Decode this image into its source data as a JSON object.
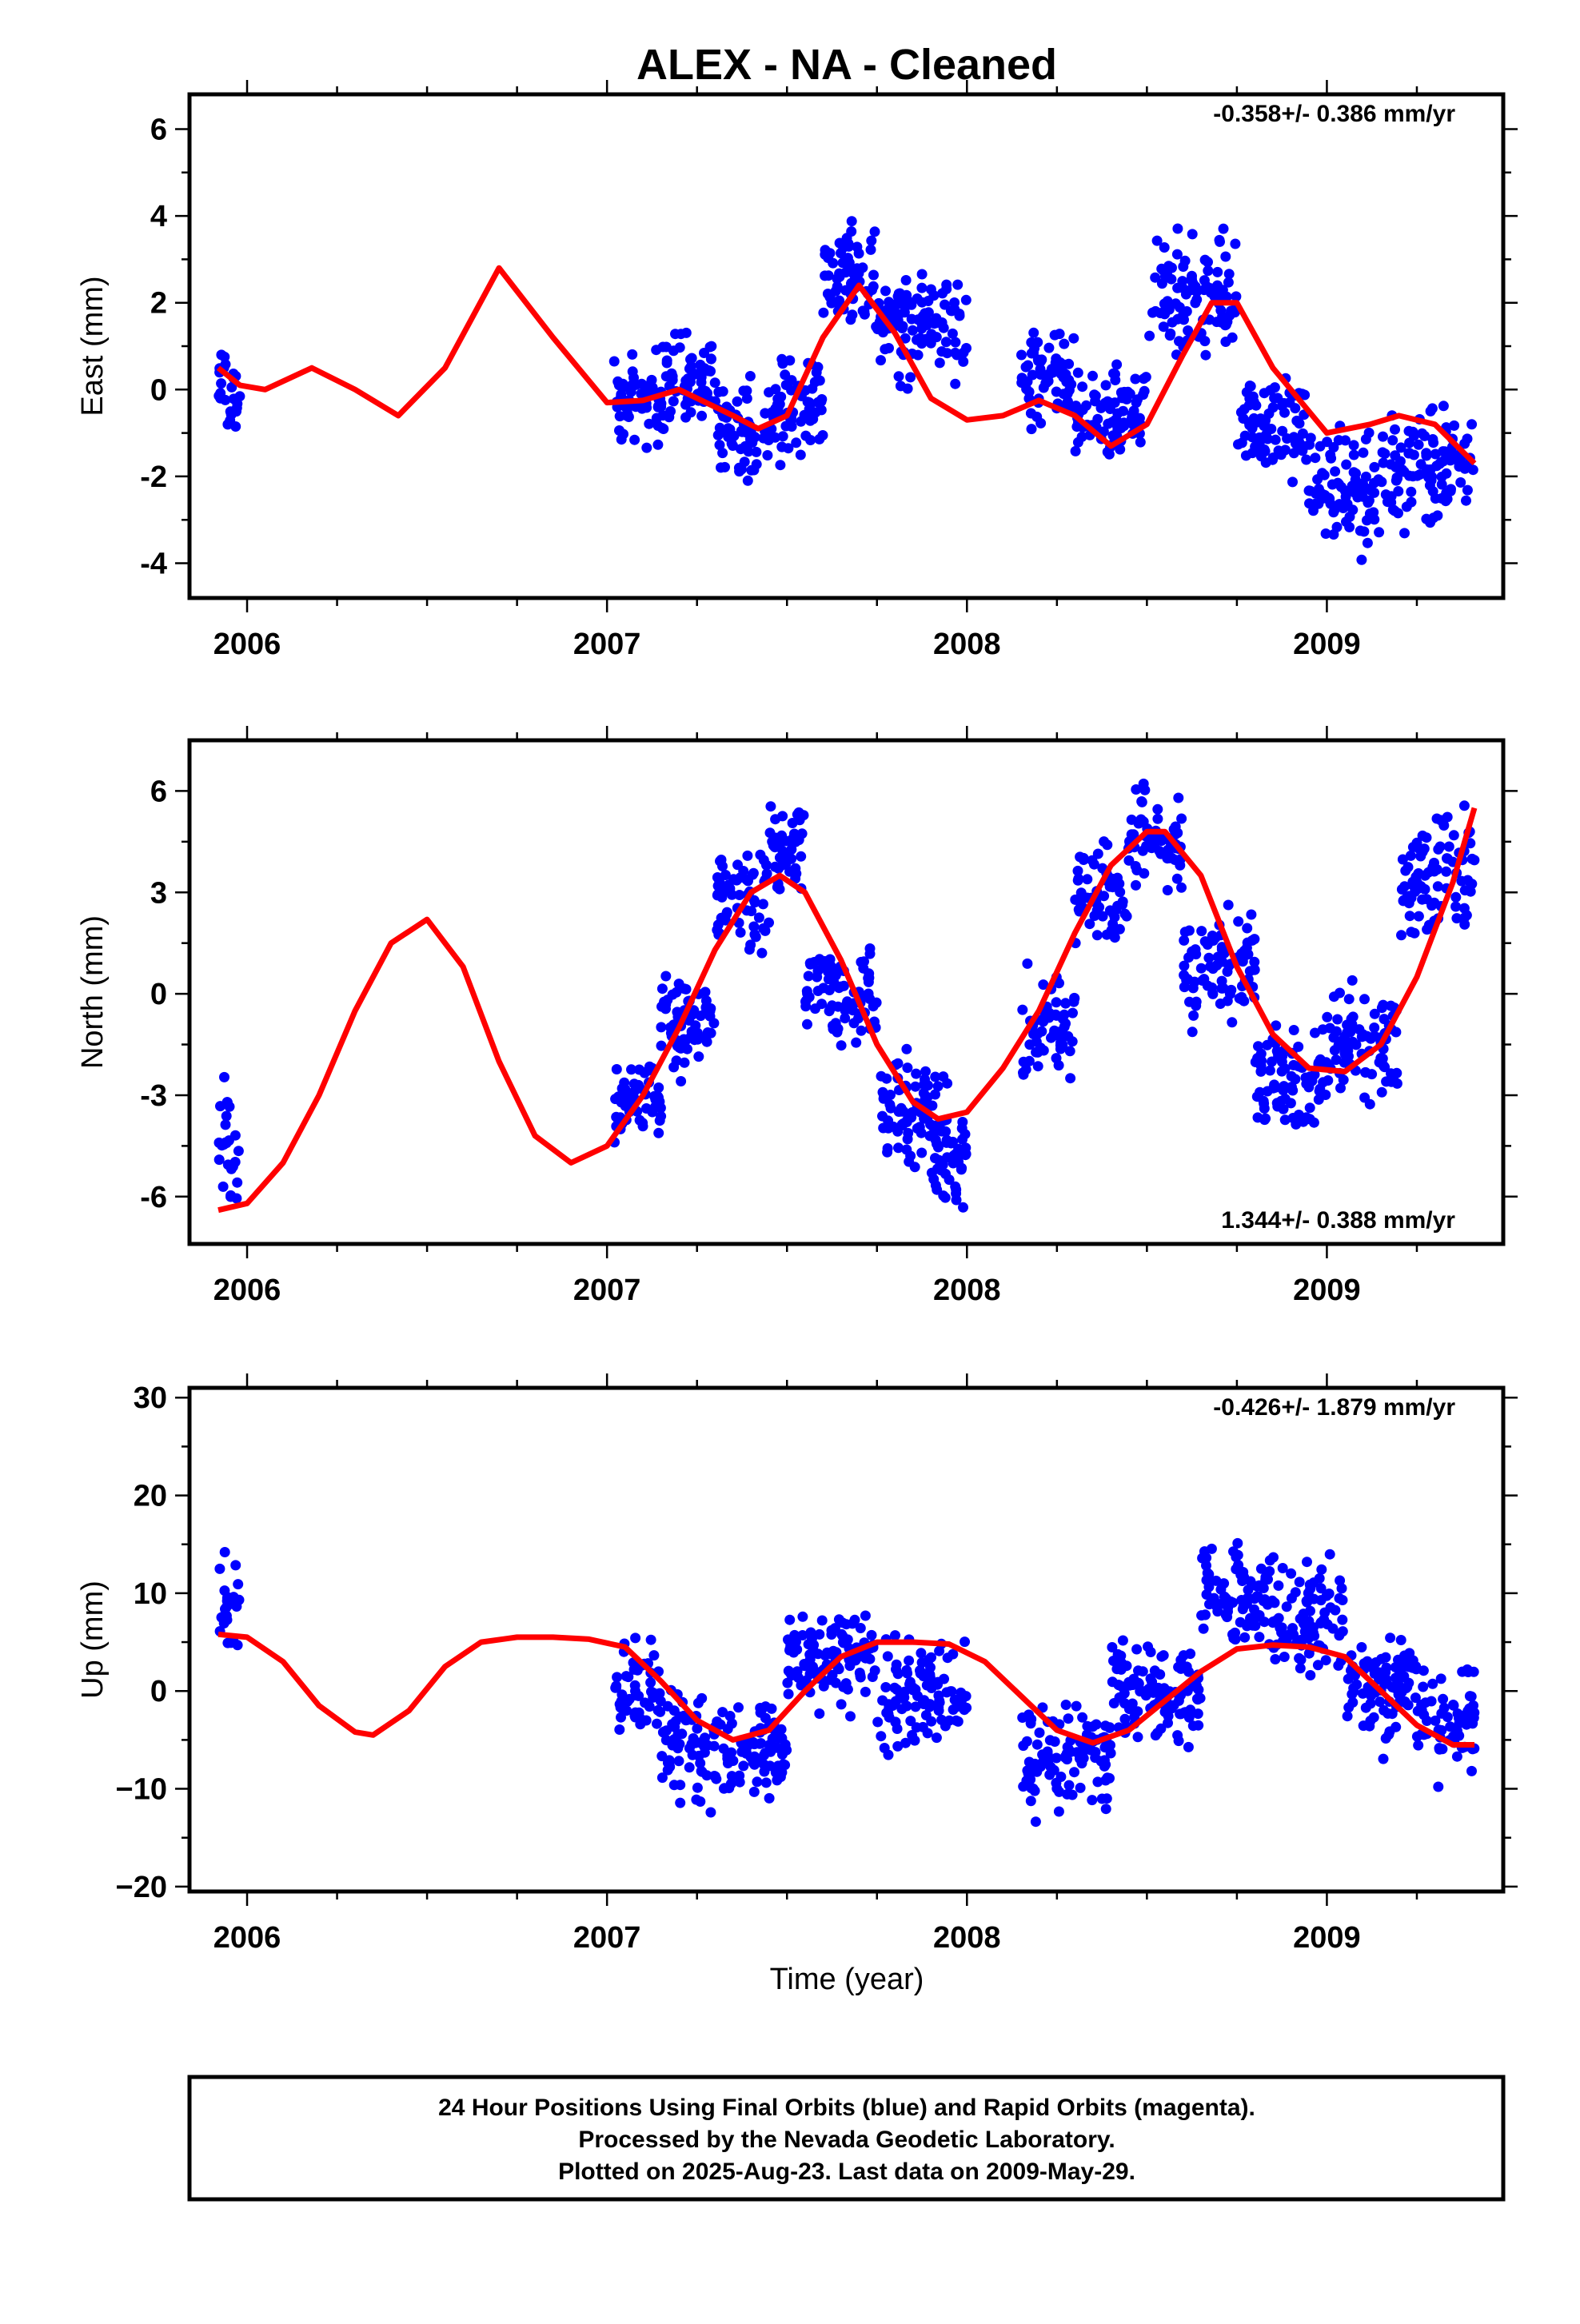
{
  "title": "ALEX  - NA - Cleaned",
  "colors": {
    "points": "#0000ff",
    "fit": "#ff0000",
    "frame": "#000000"
  },
  "x_axis": {
    "label": "Time (year)",
    "ticks": [
      "2006",
      "2007",
      "2008",
      "2009"
    ],
    "xlim": [
      2005.84,
      2009.49
    ]
  },
  "caption": {
    "line1": "24 Hour Positions Using Final Orbits (blue) and Rapid Orbits (magenta).",
    "line2": "Processed by the Nevada Geodetic Laboratory.",
    "line3": "Plotted on 2025-Aug-23. Last data on 2009-May-29."
  },
  "chart_data": [
    {
      "type": "scatter",
      "component": "east",
      "ylabel": "East (mm)",
      "rate": "-0.358+/- 0.386 mm/yr",
      "rate_position": "top-right",
      "ylim": [
        -4.8,
        6.8
      ],
      "yticks": [
        "6",
        "4",
        "2",
        "0",
        "-2",
        "-4"
      ],
      "ytick_values": [
        6,
        4,
        2,
        0,
        -2,
        -4
      ],
      "grid": false,
      "series": [
        {
          "name": "24 hour positions (final orbits)",
          "clusters": [
            {
              "x": [
                2005.92,
                2005.98
              ],
              "y_center": 0.0,
              "spread": 0.9
            },
            {
              "x": [
                2007.02,
                2007.15
              ],
              "y_center": -0.3,
              "spread": 0.9
            },
            {
              "x": [
                2007.15,
                2007.3
              ],
              "y_center": 0.2,
              "spread": 0.9
            },
            {
              "x": [
                2007.3,
                2007.45
              ],
              "y_center": -1.0,
              "spread": 0.9
            },
            {
              "x": [
                2007.45,
                2007.6
              ],
              "y_center": -0.3,
              "spread": 0.9
            },
            {
              "x": [
                2007.6,
                2007.75
              ],
              "y_center": 2.8,
              "spread": 1.1
            },
            {
              "x": [
                2007.75,
                2008.0
              ],
              "y_center": 1.5,
              "spread": 1.0
            },
            {
              "x": [
                2008.15,
                2008.3
              ],
              "y_center": 0.3,
              "spread": 0.9
            },
            {
              "x": [
                2008.3,
                2008.5
              ],
              "y_center": -0.5,
              "spread": 0.9
            },
            {
              "x": [
                2008.5,
                2008.75
              ],
              "y_center": 2.2,
              "spread": 1.0
            },
            {
              "x": [
                2008.75,
                2008.95
              ],
              "y_center": -0.8,
              "spread": 0.9
            },
            {
              "x": [
                2008.95,
                2009.15
              ],
              "y_center": -2.4,
              "spread": 1.0
            },
            {
              "x": [
                2009.15,
                2009.41
              ],
              "y_center": -1.8,
              "spread": 1.0
            }
          ]
        },
        {
          "name": "seasonal fit",
          "x": [
            2005.92,
            2005.98,
            2006.05,
            2006.18,
            2006.3,
            2006.42,
            2006.55,
            2006.7,
            2006.85,
            2007.0,
            2007.1,
            2007.2,
            2007.35,
            2007.42,
            2007.5,
            2007.6,
            2007.7,
            2007.8,
            2007.9,
            2008.0,
            2008.1,
            2008.2,
            2008.3,
            2008.4,
            2008.5,
            2008.6,
            2008.68,
            2008.75,
            2008.85,
            2009.0,
            2009.12,
            2009.2,
            2009.3,
            2009.41
          ],
          "y": [
            0.5,
            0.1,
            0.0,
            0.5,
            0.0,
            -0.6,
            0.5,
            2.8,
            1.2,
            -0.3,
            -0.25,
            0.0,
            -0.6,
            -0.9,
            -0.6,
            1.2,
            2.4,
            1.3,
            -0.2,
            -0.7,
            -0.6,
            -0.25,
            -0.6,
            -1.3,
            -0.8,
            0.8,
            2.0,
            2.0,
            0.5,
            -1.0,
            -0.8,
            -0.6,
            -0.8,
            -1.7
          ]
        }
      ]
    },
    {
      "type": "scatter",
      "component": "north",
      "ylabel": "North (mm)",
      "rate": "1.344+/- 0.388 mm/yr",
      "rate_position": "bottom-right",
      "ylim": [
        -7.4,
        7.5
      ],
      "yticks": [
        "6",
        "3",
        "0",
        "-3",
        "-6"
      ],
      "ytick_values": [
        6,
        3,
        0,
        -3,
        -6
      ],
      "grid": false,
      "series": [
        {
          "name": "24 hour positions (final orbits)",
          "clusters": [
            {
              "x": [
                2005.92,
                2005.98
              ],
              "y_center": -4.5,
              "spread": 1.8
            },
            {
              "x": [
                2007.02,
                2007.15
              ],
              "y_center": -3.3,
              "spread": 1.0
            },
            {
              "x": [
                2007.15,
                2007.3
              ],
              "y_center": -1.0,
              "spread": 1.2
            },
            {
              "x": [
                2007.3,
                2007.45
              ],
              "y_center": 2.8,
              "spread": 1.2
            },
            {
              "x": [
                2007.45,
                2007.55
              ],
              "y_center": 4.3,
              "spread": 1.2
            },
            {
              "x": [
                2007.55,
                2007.75
              ],
              "y_center": 0.0,
              "spread": 1.2
            },
            {
              "x": [
                2007.75,
                2007.95
              ],
              "y_center": -3.5,
              "spread": 1.2
            },
            {
              "x": [
                2007.9,
                2008.0
              ],
              "y_center": -5.0,
              "spread": 1.0
            },
            {
              "x": [
                2008.15,
                2008.3
              ],
              "y_center": -1.0,
              "spread": 1.2
            },
            {
              "x": [
                2008.3,
                2008.45
              ],
              "y_center": 3.0,
              "spread": 1.2
            },
            {
              "x": [
                2008.45,
                2008.6
              ],
              "y_center": 4.5,
              "spread": 1.2
            },
            {
              "x": [
                2008.6,
                2008.8
              ],
              "y_center": 0.8,
              "spread": 1.2
            },
            {
              "x": [
                2008.8,
                2009.0
              ],
              "y_center": -2.5,
              "spread": 1.2
            },
            {
              "x": [
                2009.0,
                2009.2
              ],
              "y_center": -1.5,
              "spread": 1.2
            },
            {
              "x": [
                2009.2,
                2009.41
              ],
              "y_center": 3.5,
              "spread": 1.5
            }
          ]
        },
        {
          "name": "seasonal fit",
          "x": [
            2005.92,
            2006.0,
            2006.1,
            2006.2,
            2006.3,
            2006.4,
            2006.5,
            2006.6,
            2006.7,
            2006.8,
            2006.9,
            2007.0,
            2007.1,
            2007.2,
            2007.3,
            2007.4,
            2007.48,
            2007.55,
            2007.65,
            2007.75,
            2007.85,
            2007.92,
            2008.0,
            2008.1,
            2008.2,
            2008.3,
            2008.4,
            2008.5,
            2008.55,
            2008.65,
            2008.75,
            2008.85,
            2008.95,
            2009.05,
            2009.15,
            2009.25,
            2009.35,
            2009.41
          ],
          "y": [
            -6.4,
            -6.2,
            -5.0,
            -3.0,
            -0.5,
            1.5,
            2.2,
            0.8,
            -2.0,
            -4.2,
            -5.0,
            -4.5,
            -3.0,
            -1.0,
            1.3,
            3.0,
            3.5,
            3.0,
            1.0,
            -1.5,
            -3.2,
            -3.7,
            -3.5,
            -2.2,
            -0.5,
            1.8,
            3.8,
            4.8,
            4.8,
            3.5,
            0.8,
            -1.2,
            -2.2,
            -2.3,
            -1.5,
            0.5,
            3.3,
            5.5
          ]
        }
      ]
    },
    {
      "type": "scatter",
      "component": "up",
      "ylabel": "Up (mm)",
      "rate": "-0.426+/- 1.879 mm/yr",
      "rate_position": "top-right",
      "ylim": [
        -20.5,
        31.0
      ],
      "yticks": [
        "30",
        "20",
        "10",
        "0",
        "−10",
        "−20"
      ],
      "ytick_values": [
        30,
        20,
        10,
        0,
        -10,
        -20
      ],
      "grid": false,
      "series": [
        {
          "name": "24 hour positions (final orbits)",
          "clusters": [
            {
              "x": [
                2005.92,
                2005.98
              ],
              "y_center": 8.0,
              "spread": 4.5
            },
            {
              "x": [
                2007.02,
                2007.15
              ],
              "y_center": 0.0,
              "spread": 4.5
            },
            {
              "x": [
                2007.15,
                2007.3
              ],
              "y_center": -6.0,
              "spread": 4.5
            },
            {
              "x": [
                2007.3,
                2007.5
              ],
              "y_center": -6.0,
              "spread": 3.5
            },
            {
              "x": [
                2007.5,
                2007.75
              ],
              "y_center": 3.5,
              "spread": 4.0
            },
            {
              "x": [
                2007.75,
                2008.0
              ],
              "y_center": 0.0,
              "spread": 4.5
            },
            {
              "x": [
                2008.15,
                2008.4
              ],
              "y_center": -7.0,
              "spread": 4.0
            },
            {
              "x": [
                2008.4,
                2008.65
              ],
              "y_center": 0.0,
              "spread": 4.0
            },
            {
              "x": [
                2008.65,
                2008.85
              ],
              "y_center": 10.0,
              "spread": 4.0
            },
            {
              "x": [
                2008.85,
                2009.05
              ],
              "y_center": 7.0,
              "spread": 5.0
            },
            {
              "x": [
                2009.05,
                2009.25
              ],
              "y_center": 0.0,
              "spread": 4.5
            },
            {
              "x": [
                2009.25,
                2009.41
              ],
              "y_center": -3.0,
              "spread": 4.0
            }
          ]
        },
        {
          "name": "seasonal fit",
          "x": [
            2005.92,
            2006.0,
            2006.1,
            2006.2,
            2006.3,
            2006.35,
            2006.45,
            2006.55,
            2006.65,
            2006.75,
            2006.85,
            2006.95,
            2007.05,
            2007.15,
            2007.25,
            2007.35,
            2007.45,
            2007.55,
            2007.65,
            2007.75,
            2007.85,
            2007.95,
            2008.05,
            2008.15,
            2008.25,
            2008.35,
            2008.45,
            2008.55,
            2008.65,
            2008.75,
            2008.85,
            2008.95,
            2009.05,
            2009.15,
            2009.25,
            2009.35,
            2009.41
          ],
          "y": [
            5.8,
            5.5,
            3.0,
            -1.5,
            -4.2,
            -4.5,
            -2.0,
            2.5,
            5.0,
            5.5,
            5.5,
            5.3,
            4.5,
            1.0,
            -3.0,
            -5.0,
            -4.0,
            0.0,
            3.5,
            5.0,
            5.0,
            4.8,
            3.0,
            -0.5,
            -4.0,
            -5.3,
            -4.0,
            -1.0,
            2.0,
            4.3,
            4.7,
            4.5,
            3.5,
            0.0,
            -3.5,
            -5.5,
            -5.5
          ]
        }
      ]
    }
  ]
}
